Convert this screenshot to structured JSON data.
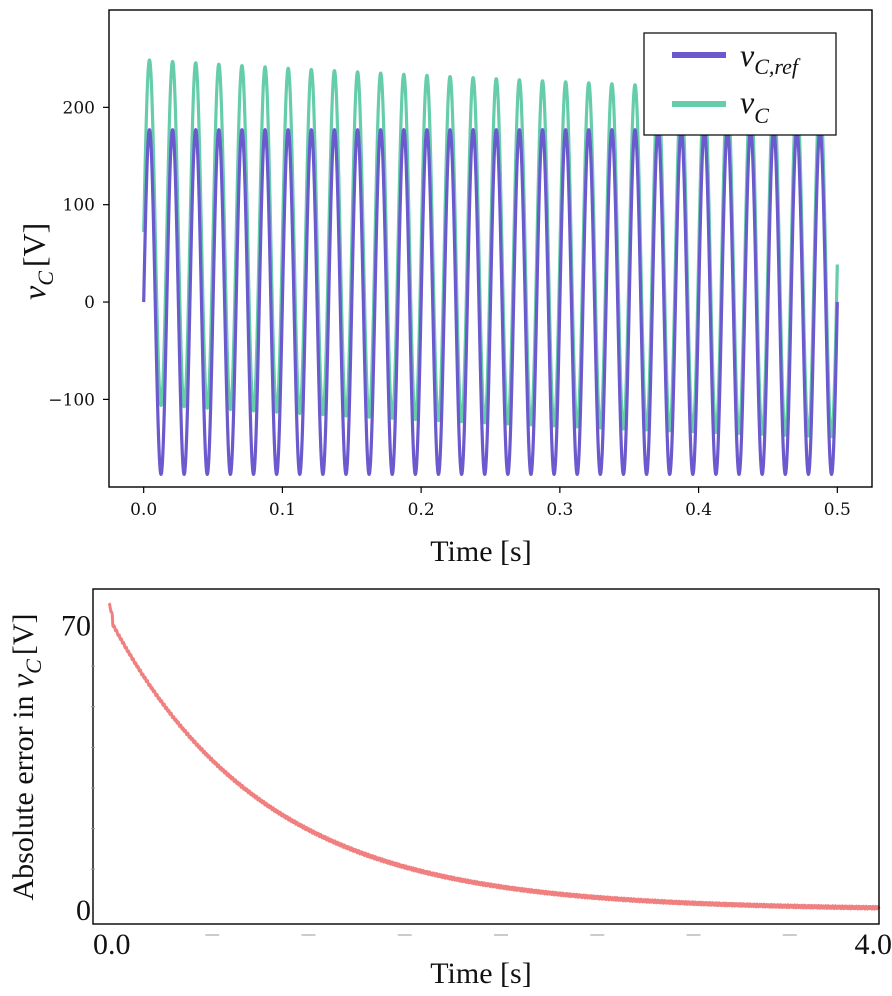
{
  "chart_data": [
    {
      "type": "line",
      "title": "",
      "xlabel": "Time [s]",
      "ylabel": "v_C [V]",
      "ylabel_parts": {
        "main": "v",
        "sub": "C",
        "unit": "[V]"
      },
      "xlim": [
        -0.025,
        0.525
      ],
      "ylim": [
        -190,
        300
      ],
      "x_ticks": [
        0.0,
        0.1,
        0.2,
        0.3,
        0.4,
        0.5
      ],
      "x_tick_labels": [
        "0.0",
        "0.1",
        "0.2",
        "0.3",
        "0.4",
        "0.5"
      ],
      "y_ticks": [
        -100,
        0,
        100,
        200
      ],
      "y_tick_labels": [
        "−100",
        "0",
        "100",
        "200"
      ],
      "grid": false,
      "legend_position": "top-right",
      "legend": [
        {
          "main": "v",
          "sub": "C,ref",
          "color": "#6a5acd"
        },
        {
          "main": "v",
          "sub": "C",
          "color": "#66cdaa"
        }
      ],
      "series": [
        {
          "name": "v_C,ref",
          "color": "#6a5acd",
          "kind": "sine",
          "amplitude": 177,
          "frequency_hz": 60,
          "offset": 0,
          "x_range": [
            0,
            0.5
          ]
        },
        {
          "name": "v_C",
          "color": "#66cdaa",
          "kind": "sine_decaying_offset",
          "amplitude": 177,
          "frequency_hz": 60,
          "initial_offset": 72,
          "decay_time_constant_s": 0.8,
          "x_range": [
            0,
            0.5
          ]
        }
      ]
    },
    {
      "type": "line",
      "title": "",
      "xlabel": "Time [s]",
      "ylabel": "Absolute error in v_C [V]",
      "ylabel_parts": {
        "prefix": "Absolute error in ",
        "main": "v",
        "sub": "C",
        "unit": "[V]"
      },
      "xlim": [
        0,
        4.0
      ],
      "ylim": [
        -3.5,
        79
      ],
      "x_tick_labels": [
        "0.0",
        "4.0"
      ],
      "y_tick_labels": [
        "0",
        "70"
      ],
      "grid": false,
      "series": [
        {
          "name": "absolute error",
          "color": "#f08080",
          "kind": "exp_decay",
          "start_value": 72,
          "peak_value": 75.5,
          "decay_time_constant_s": 0.8,
          "x_range": [
            0,
            4.0
          ]
        }
      ]
    }
  ]
}
